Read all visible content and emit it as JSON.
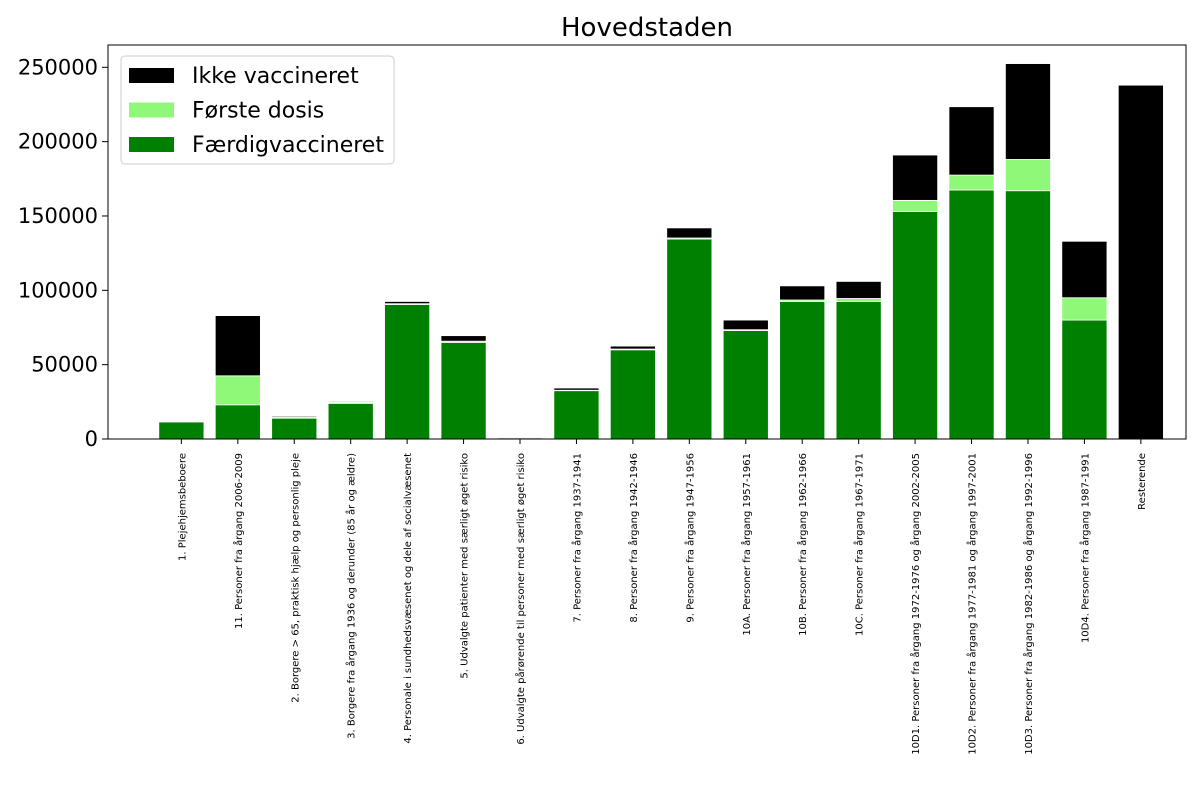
{
  "chart_data": {
    "type": "bar",
    "stacked": true,
    "title": "Hovedstaden",
    "xlabel": "",
    "ylabel": "",
    "ylim": [
      0,
      265000
    ],
    "yticks": [
      0,
      50000,
      100000,
      150000,
      200000,
      250000
    ],
    "grid": false,
    "legend_position": "top-left",
    "categories": [
      "1. Plejehjemsbeboere",
      "11. Personer fra årgang 2006-2009",
      "2. Borgere > 65, praktisk hjælp og personlig pleje",
      "3. Borgere fra årgang 1936 og derunder (85 år og ældre)",
      "4. Personale i sundhedsvæsenet og dele af socialvæsenet",
      "5. Udvalgte patienter med særligt øget risiko",
      "6. Udvalgte pårørende til personer med særligt øget risiko",
      "7. Personer fra årgang 1937-1941",
      "8. Personer fra årgang 1942-1946",
      "9. Personer fra årgang 1947-1956",
      "10A. Personer fra årgang 1957-1961",
      "10B. Personer fra årgang 1962-1966",
      "10C. Personer fra årgang 1967-1971",
      "10D1. Personer fra årgang 1972-1976 og årgang 2002-2005",
      "10D2. Personer fra årgang 1977-1981 og årgang 1997-2001",
      "10D3. Personer fra årgang 1982-1986 og årgang 1992-1996",
      "10D4. Personer fra årgang 1987-1991",
      "Resterende"
    ],
    "series": [
      {
        "name": "Færdigvaccineret",
        "color": "#008000",
        "values": [
          11500,
          23000,
          14000,
          24000,
          90500,
          65000,
          800,
          32500,
          60000,
          134500,
          73000,
          92500,
          92500,
          153000,
          167500,
          167000,
          80000,
          0
        ]
      },
      {
        "name": "Første dosis",
        "color": "#90f879",
        "values": [
          300,
          19500,
          800,
          700,
          500,
          800,
          200,
          300,
          500,
          700,
          500,
          1000,
          2000,
          7500,
          10000,
          21000,
          15000,
          0
        ]
      },
      {
        "name": "Ikke vaccineret",
        "color": "#000000",
        "values": [
          200,
          40500,
          700,
          600,
          1500,
          3700,
          200,
          1500,
          2000,
          6800,
          6500,
          9500,
          11500,
          30500,
          46000,
          64500,
          38000,
          238000
        ]
      }
    ],
    "legend_order": [
      "Ikke vaccineret",
      "Første dosis",
      "Færdigvaccineret"
    ]
  }
}
